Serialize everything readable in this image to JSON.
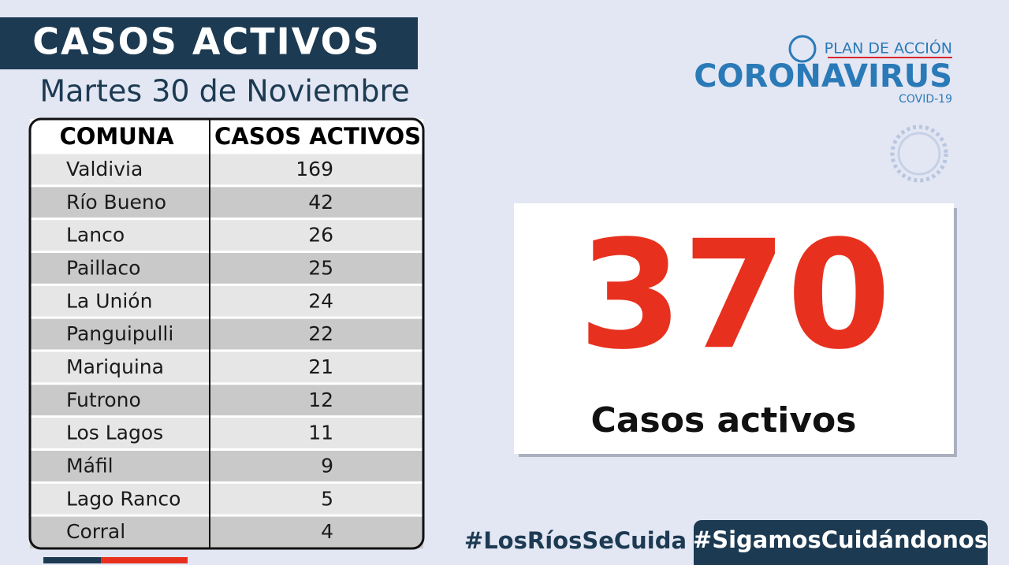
{
  "header": {
    "title": "CASOS ACTIVOS",
    "date": "Martes 30 de  Noviembre"
  },
  "logo": {
    "plan": "PLAN DE ACCIÓN",
    "name": "CORONAVIRUS",
    "sub": "COVID-19"
  },
  "table": {
    "columns": [
      "COMUNA",
      "CASOS ACTIVOS"
    ],
    "rows": [
      [
        "Valdivia",
        169
      ],
      [
        "Río Bueno",
        42
      ],
      [
        "Lanco",
        26
      ],
      [
        "Paillaco",
        25
      ],
      [
        "La Unión",
        24
      ],
      [
        "Panguipulli",
        22
      ],
      [
        "Mariquina",
        21
      ],
      [
        "Futrono",
        12
      ],
      [
        "Los Lagos",
        11
      ],
      [
        "Máfil",
        9
      ],
      [
        "Lago Ranco",
        5
      ],
      [
        "Corral",
        4
      ]
    ]
  },
  "total": {
    "value": 370,
    "label": "Casos activos"
  },
  "hashtags": [
    "#LosRíosSeCuida",
    "#SigamosCuidándonos"
  ]
}
